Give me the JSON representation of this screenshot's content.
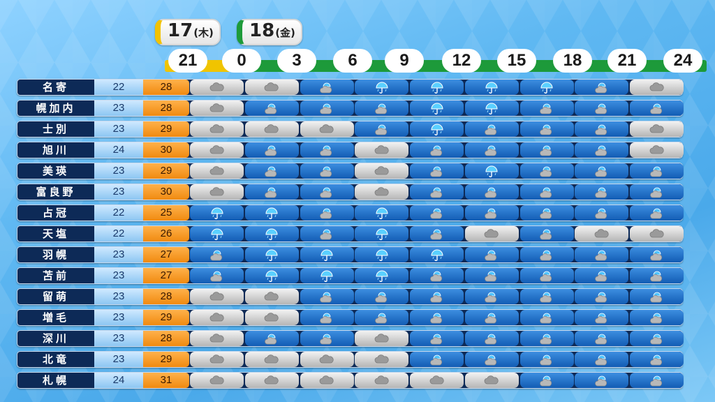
{
  "dates": [
    {
      "day": "17",
      "weekday": "(木)",
      "color": "#f2c200"
    },
    {
      "day": "18",
      "weekday": "(金)",
      "color": "#1e9b3a"
    }
  ],
  "hours": [
    "21",
    "0",
    "3",
    "6",
    "9",
    "12",
    "15",
    "18",
    "21",
    "24"
  ],
  "weather_legend": {
    "C": "cloud-icon",
    "R": "rain-icon",
    "U": "umbrella-icon"
  },
  "rows": [
    {
      "city": "名寄",
      "min": "22",
      "max": "28",
      "weather": [
        "C",
        "C",
        "R",
        "U",
        "U",
        "U",
        "U",
        "R",
        "C"
      ]
    },
    {
      "city": "幌加内",
      "min": "23",
      "max": "28",
      "weather": [
        "C",
        "R",
        "R",
        "R",
        "U",
        "U",
        "R",
        "R",
        "R"
      ]
    },
    {
      "city": "士別",
      "min": "23",
      "max": "29",
      "weather": [
        "C",
        "C",
        "C",
        "R",
        "U",
        "R",
        "R",
        "R",
        "C"
      ]
    },
    {
      "city": "旭川",
      "min": "24",
      "max": "30",
      "weather": [
        "C",
        "R",
        "R",
        "C",
        "R",
        "R",
        "R",
        "R",
        "C"
      ]
    },
    {
      "city": "美瑛",
      "min": "23",
      "max": "29",
      "weather": [
        "C",
        "R",
        "R",
        "C",
        "R",
        "U",
        "R",
        "R",
        "R"
      ]
    },
    {
      "city": "富良野",
      "min": "23",
      "max": "30",
      "weather": [
        "C",
        "R",
        "R",
        "C",
        "R",
        "R",
        "R",
        "R",
        "R"
      ]
    },
    {
      "city": "占冠",
      "min": "22",
      "max": "25",
      "weather": [
        "U",
        "U",
        "R",
        "U",
        "R",
        "R",
        "R",
        "R",
        "R"
      ]
    },
    {
      "city": "天塩",
      "min": "22",
      "max": "26",
      "weather": [
        "U",
        "U",
        "R",
        "U",
        "R",
        "C",
        "R",
        "C",
        "C"
      ]
    },
    {
      "city": "羽幌",
      "min": "23",
      "max": "27",
      "weather": [
        "R",
        "U",
        "U",
        "U",
        "U",
        "R",
        "R",
        "R",
        "R"
      ]
    },
    {
      "city": "苫前",
      "min": "23",
      "max": "27",
      "weather": [
        "R",
        "U",
        "U",
        "U",
        "R",
        "R",
        "R",
        "R",
        "R"
      ]
    },
    {
      "city": "留萌",
      "min": "23",
      "max": "28",
      "weather": [
        "C",
        "C",
        "R",
        "R",
        "R",
        "R",
        "R",
        "R",
        "R"
      ]
    },
    {
      "city": "増毛",
      "min": "23",
      "max": "29",
      "weather": [
        "C",
        "C",
        "R",
        "R",
        "R",
        "R",
        "R",
        "R",
        "R"
      ]
    },
    {
      "city": "深川",
      "min": "23",
      "max": "28",
      "weather": [
        "C",
        "R",
        "R",
        "C",
        "R",
        "R",
        "R",
        "R",
        "R"
      ]
    },
    {
      "city": "北竜",
      "min": "23",
      "max": "29",
      "weather": [
        "C",
        "C",
        "C",
        "C",
        "R",
        "R",
        "R",
        "R",
        "R"
      ]
    },
    {
      "city": "札幌",
      "min": "24",
      "max": "31",
      "weather": [
        "C",
        "C",
        "C",
        "C",
        "C",
        "C",
        "R",
        "R",
        "R"
      ]
    }
  ]
}
